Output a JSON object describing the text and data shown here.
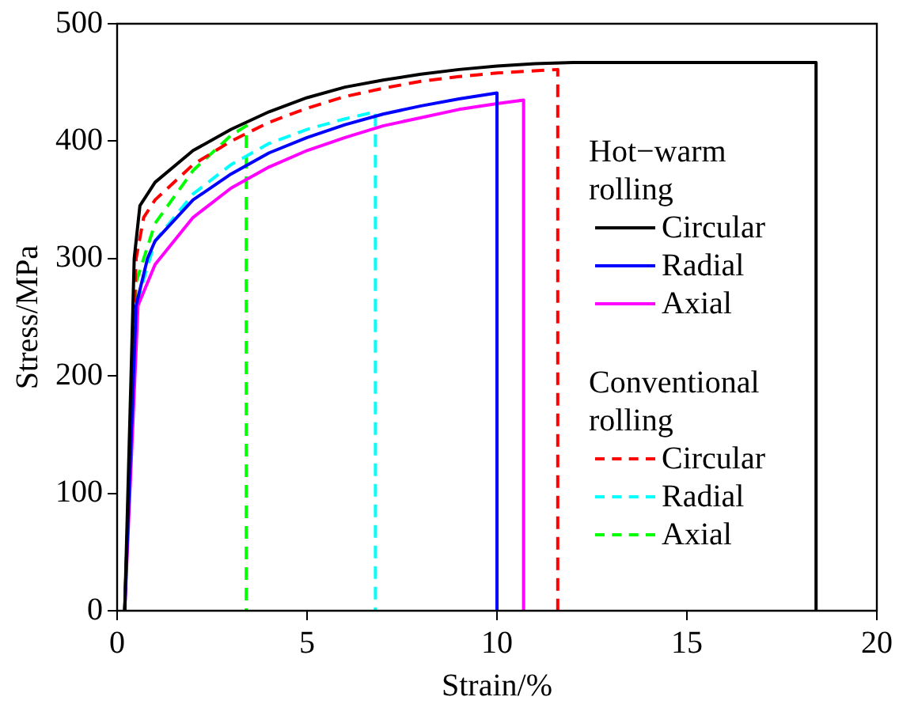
{
  "chart_data": {
    "type": "line",
    "xlabel": "Strain/%",
    "ylabel": "Stress/MPa",
    "xlim": [
      0,
      20
    ],
    "xticks": [
      0,
      5,
      10,
      15,
      20
    ],
    "ylim": [
      0,
      500
    ],
    "yticks": [
      0,
      100,
      200,
      300,
      400,
      500
    ],
    "grid": false,
    "legend": "right",
    "marker": "none",
    "annotations": [
      "Hot−warm rolling",
      "Conventional rolling"
    ],
    "series": [
      {
        "name": "Circular",
        "color": "#000000",
        "line_style": "solid",
        "x": [
          0.2,
          0.45,
          0.6,
          1,
          2,
          3,
          4,
          5,
          6,
          7,
          8,
          9,
          10,
          11,
          12,
          18.4,
          18.4
        ],
        "values": [
          0,
          300,
          345,
          365,
          392,
          410,
          425,
          437,
          446,
          452,
          457,
          461,
          464,
          466,
          467,
          467,
          0
        ]
      },
      {
        "name": "Radial",
        "color": "#0000ff",
        "line_style": "solid",
        "x": [
          0.2,
          0.5,
          0.8,
          1,
          2,
          3,
          4,
          5,
          6,
          7,
          8,
          9,
          10,
          10
        ],
        "values": [
          0,
          260,
          300,
          315,
          350,
          372,
          390,
          403,
          414,
          423,
          430,
          436,
          441,
          0
        ]
      },
      {
        "name": "Axial",
        "color": "#ff00ff",
        "line_style": "solid",
        "x": [
          0.2,
          0.55,
          1,
          2,
          3,
          4,
          5,
          6,
          7,
          8,
          9,
          10,
          10.7,
          10.7
        ],
        "values": [
          0,
          260,
          295,
          335,
          360,
          378,
          392,
          403,
          413,
          420,
          427,
          432,
          435,
          0
        ]
      },
      {
        "name": "Circular",
        "color": "#ff0000",
        "line_style": "dashed",
        "x": [
          0.2,
          0.5,
          0.7,
          1,
          2,
          3,
          4,
          5,
          6,
          7,
          8,
          9,
          10,
          11.6,
          11.6
        ],
        "values": [
          0,
          300,
          335,
          350,
          380,
          400,
          416,
          428,
          438,
          445,
          451,
          455,
          458,
          461,
          0
        ]
      },
      {
        "name": "Radial",
        "color": "#00ffff",
        "line_style": "dashed",
        "x": [
          0.2,
          0.5,
          1,
          2,
          3,
          4,
          5,
          6,
          6.8,
          6.8
        ],
        "values": [
          0,
          260,
          315,
          355,
          380,
          398,
          410,
          419,
          425,
          0
        ]
      },
      {
        "name": "Axial",
        "color": "#00ff00",
        "line_style": "dashed",
        "x": [
          0.2,
          0.5,
          1,
          2,
          3,
          3.4,
          3.4
        ],
        "values": [
          0,
          280,
          330,
          375,
          405,
          413,
          0
        ]
      }
    ]
  }
}
